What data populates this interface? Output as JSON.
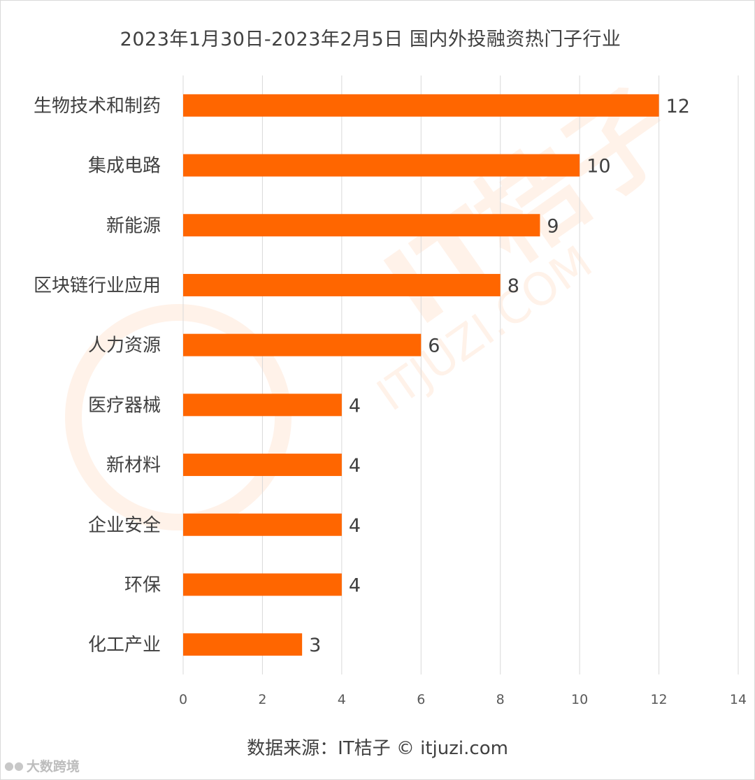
{
  "chart_data": {
    "type": "bar",
    "orientation": "horizontal",
    "title": "2023年1月30日-2023年2月5日 国内外投融资热门子行业",
    "categories": [
      "生物技术和制药",
      "集成电路",
      "新能源",
      "区块链行业应用",
      "人力资源",
      "医疗器械",
      "新材料",
      "企业安全",
      "环保",
      "化工产业"
    ],
    "values": [
      12,
      10,
      9,
      8,
      6,
      4,
      4,
      4,
      4,
      3
    ],
    "xlim": [
      0,
      14
    ],
    "xticks": [
      0,
      2,
      4,
      6,
      8,
      10,
      12,
      14
    ],
    "grid": true,
    "legend": "none",
    "bar_color": "#ff6600"
  },
  "source": "数据来源：IT桔子 © itjuzi.com",
  "watermark": {
    "brand": "IT桔子",
    "domain": "ITJUZI.COM"
  },
  "badge": {
    "icon": "logo-icon",
    "label": "大数跨境"
  }
}
